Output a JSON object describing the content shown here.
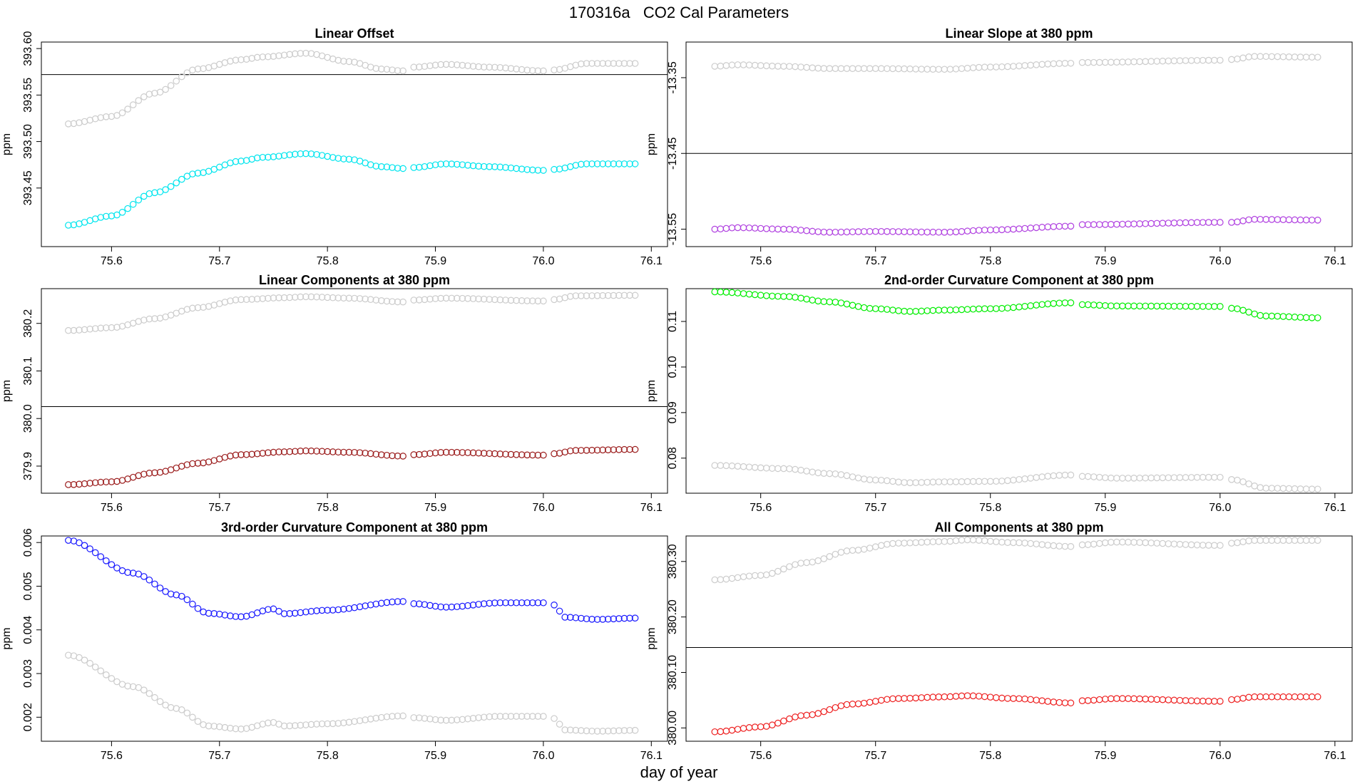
{
  "page": {
    "main_title": "170316a   CO2 Cal Parameters",
    "xlabel": "day of year"
  },
  "chart_data": [
    {
      "type": "scatter",
      "title": "Linear Offset",
      "ylabel": "ppm",
      "xlim": [
        75.535,
        76.115
      ],
      "ylim": [
        393.387,
        393.607
      ],
      "xticks": [
        75.6,
        75.7,
        75.8,
        75.9,
        76.0,
        76.1
      ],
      "xtick_labels": [
        "75.6",
        "75.7",
        "75.8",
        "75.9",
        "76.0",
        "76.1"
      ],
      "yticks": [
        393.45,
        393.5,
        393.55,
        393.6
      ],
      "ytick_labels": [
        "393.45",
        "393.50",
        "393.55",
        "393.60"
      ],
      "hline": 393.572,
      "series": [
        {
          "color": "#cccccc",
          "knots": [
            [
              75.56,
              393.519
            ],
            [
              75.6,
              393.527
            ],
            [
              75.64,
              393.552
            ],
            [
              75.68,
              393.578
            ],
            [
              75.72,
              393.588
            ],
            [
              75.74,
              393.591
            ],
            [
              75.78,
              393.595
            ],
            [
              75.82,
              393.586
            ],
            [
              75.85,
              393.578
            ],
            [
              75.87,
              393.576
            ],
            [
              75.88,
              393.58
            ],
            [
              75.91,
              393.583
            ],
            [
              75.95,
              393.58
            ],
            [
              76.0,
              393.576
            ],
            [
              76.01,
              393.577
            ],
            [
              76.04,
              393.584
            ],
            [
              76.085,
              393.584
            ]
          ]
        },
        {
          "color": "#00e5ee",
          "knots": [
            [
              75.56,
              393.41
            ],
            [
              75.6,
              393.42
            ],
            [
              75.64,
              393.445
            ],
            [
              75.68,
              393.466
            ],
            [
              75.72,
              393.479
            ],
            [
              75.74,
              393.483
            ],
            [
              75.78,
              393.487
            ],
            [
              75.82,
              393.481
            ],
            [
              75.85,
              393.473
            ],
            [
              75.87,
              393.471
            ],
            [
              75.88,
              393.472
            ],
            [
              75.91,
              393.476
            ],
            [
              75.95,
              393.473
            ],
            [
              76.0,
              393.469
            ],
            [
              76.01,
              393.47
            ],
            [
              76.04,
              393.476
            ],
            [
              76.085,
              393.476
            ]
          ]
        }
      ]
    },
    {
      "type": "scatter",
      "title": "Linear Slope at 380 ppm",
      "ylabel": "ppm",
      "xlim": [
        75.535,
        76.115
      ],
      "ylim": [
        -13.573,
        -13.303
      ],
      "xticks": [
        75.6,
        75.7,
        75.8,
        75.9,
        76.0,
        76.1
      ],
      "xtick_labels": [
        "75.6",
        "75.7",
        "75.8",
        "75.9",
        "76.0",
        "76.1"
      ],
      "yticks": [
        -13.55,
        -13.45,
        -13.35
      ],
      "ytick_labels": [
        "-13.55",
        "-13.45",
        "-13.35"
      ],
      "hline": -13.45,
      "series": [
        {
          "color": "#cccccc",
          "knots": [
            [
              75.56,
              -13.335
            ],
            [
              75.58,
              -13.333
            ],
            [
              75.62,
              -13.335
            ],
            [
              75.66,
              -13.338
            ],
            [
              75.7,
              -13.338
            ],
            [
              75.76,
              -13.339
            ],
            [
              75.8,
              -13.336
            ],
            [
              75.87,
              -13.331
            ],
            [
              75.88,
              -13.33
            ],
            [
              76.0,
              -13.327
            ],
            [
              76.01,
              -13.326
            ],
            [
              76.03,
              -13.322
            ],
            [
              76.085,
              -13.323
            ]
          ]
        },
        {
          "color": "#b040e0",
          "knots": [
            [
              75.56,
              -13.55
            ],
            [
              75.58,
              -13.548
            ],
            [
              75.62,
              -13.55
            ],
            [
              75.66,
              -13.554
            ],
            [
              75.7,
              -13.553
            ],
            [
              75.76,
              -13.554
            ],
            [
              75.8,
              -13.551
            ],
            [
              75.87,
              -13.546
            ],
            [
              75.88,
              -13.544
            ],
            [
              76.0,
              -13.541
            ],
            [
              76.01,
              -13.541
            ],
            [
              76.03,
              -13.537
            ],
            [
              76.085,
              -13.538
            ]
          ]
        }
      ]
    },
    {
      "type": "scatter",
      "title": "Linear Components at 380 ppm",
      "ylabel": "ppm",
      "xlim": [
        75.535,
        76.115
      ],
      "ylim": [
        379.843,
        380.273
      ],
      "xticks": [
        75.6,
        75.7,
        75.8,
        75.9,
        76.0,
        76.1
      ],
      "xtick_labels": [
        "75.6",
        "75.7",
        "75.8",
        "75.9",
        "76.0",
        "76.1"
      ],
      "yticks": [
        379.9,
        380.0,
        380.1,
        380.2
      ],
      "ytick_labels": [
        "379.9",
        "380.0",
        "380.1",
        "380.2"
      ],
      "hline": 380.025,
      "series": [
        {
          "color": "#cccccc",
          "knots": [
            [
              75.56,
              380.185
            ],
            [
              75.6,
              380.191
            ],
            [
              75.64,
              380.21
            ],
            [
              75.68,
              380.233
            ],
            [
              75.72,
              380.25
            ],
            [
              75.76,
              380.254
            ],
            [
              75.78,
              380.256
            ],
            [
              75.82,
              380.253
            ],
            [
              75.87,
              380.245
            ],
            [
              75.88,
              380.249
            ],
            [
              75.91,
              380.253
            ],
            [
              76.0,
              380.247
            ],
            [
              76.01,
              380.25
            ],
            [
              76.03,
              380.258
            ],
            [
              76.085,
              380.259
            ]
          ]
        },
        {
          "color": "#9b1c1c",
          "knots": [
            [
              75.56,
              379.861
            ],
            [
              75.6,
              379.867
            ],
            [
              75.64,
              379.886
            ],
            [
              75.68,
              379.906
            ],
            [
              75.72,
              379.924
            ],
            [
              75.76,
              379.93
            ],
            [
              75.78,
              379.932
            ],
            [
              75.82,
              379.929
            ],
            [
              75.87,
              379.921
            ],
            [
              75.88,
              379.924
            ],
            [
              75.91,
              379.929
            ],
            [
              76.0,
              379.923
            ],
            [
              76.01,
              379.926
            ],
            [
              76.03,
              379.933
            ],
            [
              76.085,
              379.935
            ]
          ]
        }
      ]
    },
    {
      "type": "scatter",
      "title": "2nd-order Curvature Component at 380 ppm",
      "ylabel": "ppm",
      "xlim": [
        75.535,
        76.115
      ],
      "ylim": [
        0.0723,
        0.1172
      ],
      "xticks": [
        75.6,
        75.7,
        75.8,
        75.9,
        76.0,
        76.1
      ],
      "xtick_labels": [
        "75.6",
        "75.7",
        "75.8",
        "75.9",
        "76.0",
        "76.1"
      ],
      "yticks": [
        0.08,
        0.09,
        0.1,
        0.11
      ],
      "ytick_labels": [
        "0.08",
        "0.09",
        "0.10",
        "0.11"
      ],
      "hline": null,
      "series": [
        {
          "color": "#00ee00",
          "knots": [
            [
              75.56,
              0.1165
            ],
            [
              75.62,
              0.1155
            ],
            [
              75.66,
              0.1143
            ],
            [
              75.7,
              0.1128
            ],
            [
              75.73,
              0.1122
            ],
            [
              75.76,
              0.1125
            ],
            [
              75.8,
              0.1128
            ],
            [
              75.87,
              0.1141
            ],
            [
              75.88,
              0.1137
            ],
            [
              75.91,
              0.1134
            ],
            [
              76.0,
              0.1133
            ],
            [
              76.01,
              0.1129
            ],
            [
              76.04,
              0.1112
            ],
            [
              76.085,
              0.1108
            ]
          ]
        },
        {
          "color": "#cccccc",
          "knots": [
            [
              75.56,
              0.0784
            ],
            [
              75.62,
              0.0777
            ],
            [
              75.66,
              0.0766
            ],
            [
              75.7,
              0.0752
            ],
            [
              75.73,
              0.0746
            ],
            [
              75.76,
              0.0748
            ],
            [
              75.8,
              0.0749
            ],
            [
              75.87,
              0.0763
            ],
            [
              75.88,
              0.076
            ],
            [
              75.91,
              0.0756
            ],
            [
              76.0,
              0.0758
            ],
            [
              76.01,
              0.0753
            ],
            [
              76.04,
              0.0734
            ],
            [
              76.085,
              0.0732
            ]
          ]
        }
      ]
    },
    {
      "type": "scatter",
      "title": "3rd-order Curvature Component at 380 ppm",
      "ylabel": "ppm",
      "xlim": [
        75.535,
        76.115
      ],
      "ylim": [
        0.00145,
        0.00615
      ],
      "xticks": [
        75.6,
        75.7,
        75.8,
        75.9,
        76.0,
        76.1
      ],
      "xtick_labels": [
        "75.6",
        "75.7",
        "75.8",
        "75.9",
        "76.0",
        "76.1"
      ],
      "yticks": [
        0.002,
        0.003,
        0.004,
        0.005,
        0.006
      ],
      "ytick_labels": [
        "0.002",
        "0.003",
        "0.004",
        "0.005",
        "0.006"
      ],
      "hline": null,
      "series": [
        {
          "color": "#1a1aff",
          "knots": [
            [
              75.56,
              0.00605
            ],
            [
              75.62,
              0.0053
            ],
            [
              75.66,
              0.0048
            ],
            [
              75.69,
              0.00438
            ],
            [
              75.72,
              0.0043
            ],
            [
              75.75,
              0.00448
            ],
            [
              75.76,
              0.00437
            ],
            [
              75.8,
              0.00445
            ],
            [
              75.87,
              0.00465
            ],
            [
              75.88,
              0.0046
            ],
            [
              75.91,
              0.00452
            ],
            [
              75.96,
              0.00462
            ],
            [
              76.0,
              0.00462
            ],
            [
              76.01,
              0.00457
            ],
            [
              76.02,
              0.00429
            ],
            [
              76.05,
              0.00424
            ],
            [
              76.085,
              0.00427
            ]
          ]
        },
        {
          "color": "#cccccc",
          "knots": [
            [
              75.56,
              0.00342
            ],
            [
              75.62,
              0.0027
            ],
            [
              75.66,
              0.0022
            ],
            [
              75.69,
              0.0018
            ],
            [
              75.72,
              0.00173
            ],
            [
              75.75,
              0.00188
            ],
            [
              75.76,
              0.0018
            ],
            [
              75.8,
              0.00185
            ],
            [
              75.87,
              0.00203
            ],
            [
              75.88,
              0.00199
            ],
            [
              75.91,
              0.00193
            ],
            [
              75.96,
              0.00202
            ],
            [
              76.0,
              0.00202
            ],
            [
              76.01,
              0.00197
            ],
            [
              76.02,
              0.00171
            ],
            [
              76.05,
              0.00168
            ],
            [
              76.085,
              0.0017
            ]
          ]
        }
      ]
    },
    {
      "type": "scatter",
      "title": "All Components at 380 ppm",
      "ylabel": "ppm",
      "xlim": [
        75.535,
        76.115
      ],
      "ylim": [
        379.976,
        380.346
      ],
      "xticks": [
        75.6,
        75.7,
        75.8,
        75.9,
        76.0,
        76.1
      ],
      "xtick_labels": [
        "75.6",
        "75.7",
        "75.8",
        "75.9",
        "76.0",
        "76.1"
      ],
      "yticks": [
        380.0,
        380.1,
        380.2,
        380.3
      ],
      "ytick_labels": [
        "380.00",
        "380.10",
        "380.20",
        "380.30"
      ],
      "hline": 380.145,
      "series": [
        {
          "color": "#cccccc",
          "knots": [
            [
              75.56,
              380.267
            ],
            [
              75.6,
              380.275
            ],
            [
              75.64,
              380.298
            ],
            [
              75.68,
              380.32
            ],
            [
              75.72,
              380.333
            ],
            [
              75.76,
              380.336
            ],
            [
              75.78,
              380.339
            ],
            [
              75.82,
              380.334
            ],
            [
              75.87,
              380.327
            ],
            [
              75.88,
              380.33
            ],
            [
              75.91,
              380.335
            ],
            [
              76.0,
              380.329
            ],
            [
              76.01,
              380.333
            ],
            [
              76.03,
              380.338
            ],
            [
              76.085,
              380.338
            ]
          ]
        },
        {
          "color": "#ee2020",
          "knots": [
            [
              75.56,
              379.993
            ],
            [
              75.6,
              380.002
            ],
            [
              75.64,
              380.023
            ],
            [
              75.68,
              380.043
            ],
            [
              75.72,
              380.053
            ],
            [
              75.76,
              380.056
            ],
            [
              75.78,
              380.058
            ],
            [
              75.82,
              380.053
            ],
            [
              75.87,
              380.045
            ],
            [
              75.88,
              380.049
            ],
            [
              75.91,
              380.053
            ],
            [
              76.0,
              380.048
            ],
            [
              76.01,
              380.051
            ],
            [
              76.03,
              380.056
            ],
            [
              76.085,
              380.056
            ]
          ]
        }
      ]
    }
  ]
}
